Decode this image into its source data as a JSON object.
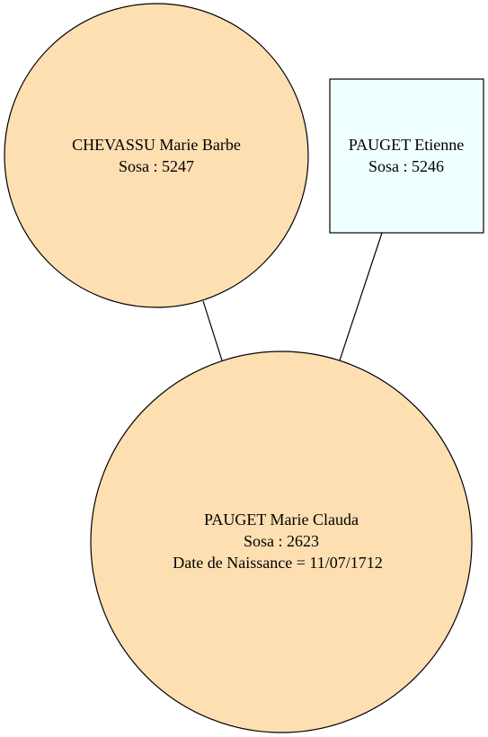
{
  "colors": {
    "female_fill": "#FDDFB2",
    "male_fill": "#F0FFFF",
    "stroke": "#000000",
    "background": "#FFFFFF"
  },
  "nodes": {
    "mother": {
      "name": "CHEVASSU Marie Barbe",
      "sosa": "Sosa : 5247"
    },
    "father": {
      "name": "PAUGET Etienne",
      "sosa": "Sosa : 5246"
    },
    "child": {
      "name": "PAUGET Marie Clauda",
      "sosa": "Sosa : 2623",
      "birth": "Date de Naissance = 11/07/1712"
    }
  }
}
